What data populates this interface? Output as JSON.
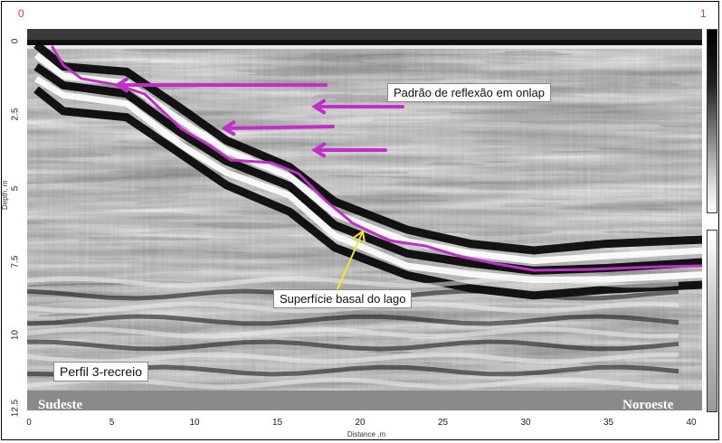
{
  "corners": {
    "left": "0",
    "right": "1"
  },
  "axes": {
    "ylabel": "Depth, m",
    "xlabel": "Distance ,m",
    "yticks": [
      "0",
      "2.5",
      "5",
      "7.5",
      "10",
      "12.5"
    ],
    "xticks": [
      "0",
      "5",
      "10",
      "15",
      "20",
      "25",
      "30",
      "35",
      "40"
    ]
  },
  "annotations": {
    "onlap": "Padrão de reflexão em onlap",
    "basal": "Superfície basal do lago",
    "profile": "Perfil 3-recreio"
  },
  "bottom": {
    "left": "Sudeste",
    "right": "Noroeste"
  },
  "colors": {
    "interpretation_line": "#c030c8",
    "arrow_basal": "#f2ea2a",
    "corner_text": "#e23b3b"
  }
}
